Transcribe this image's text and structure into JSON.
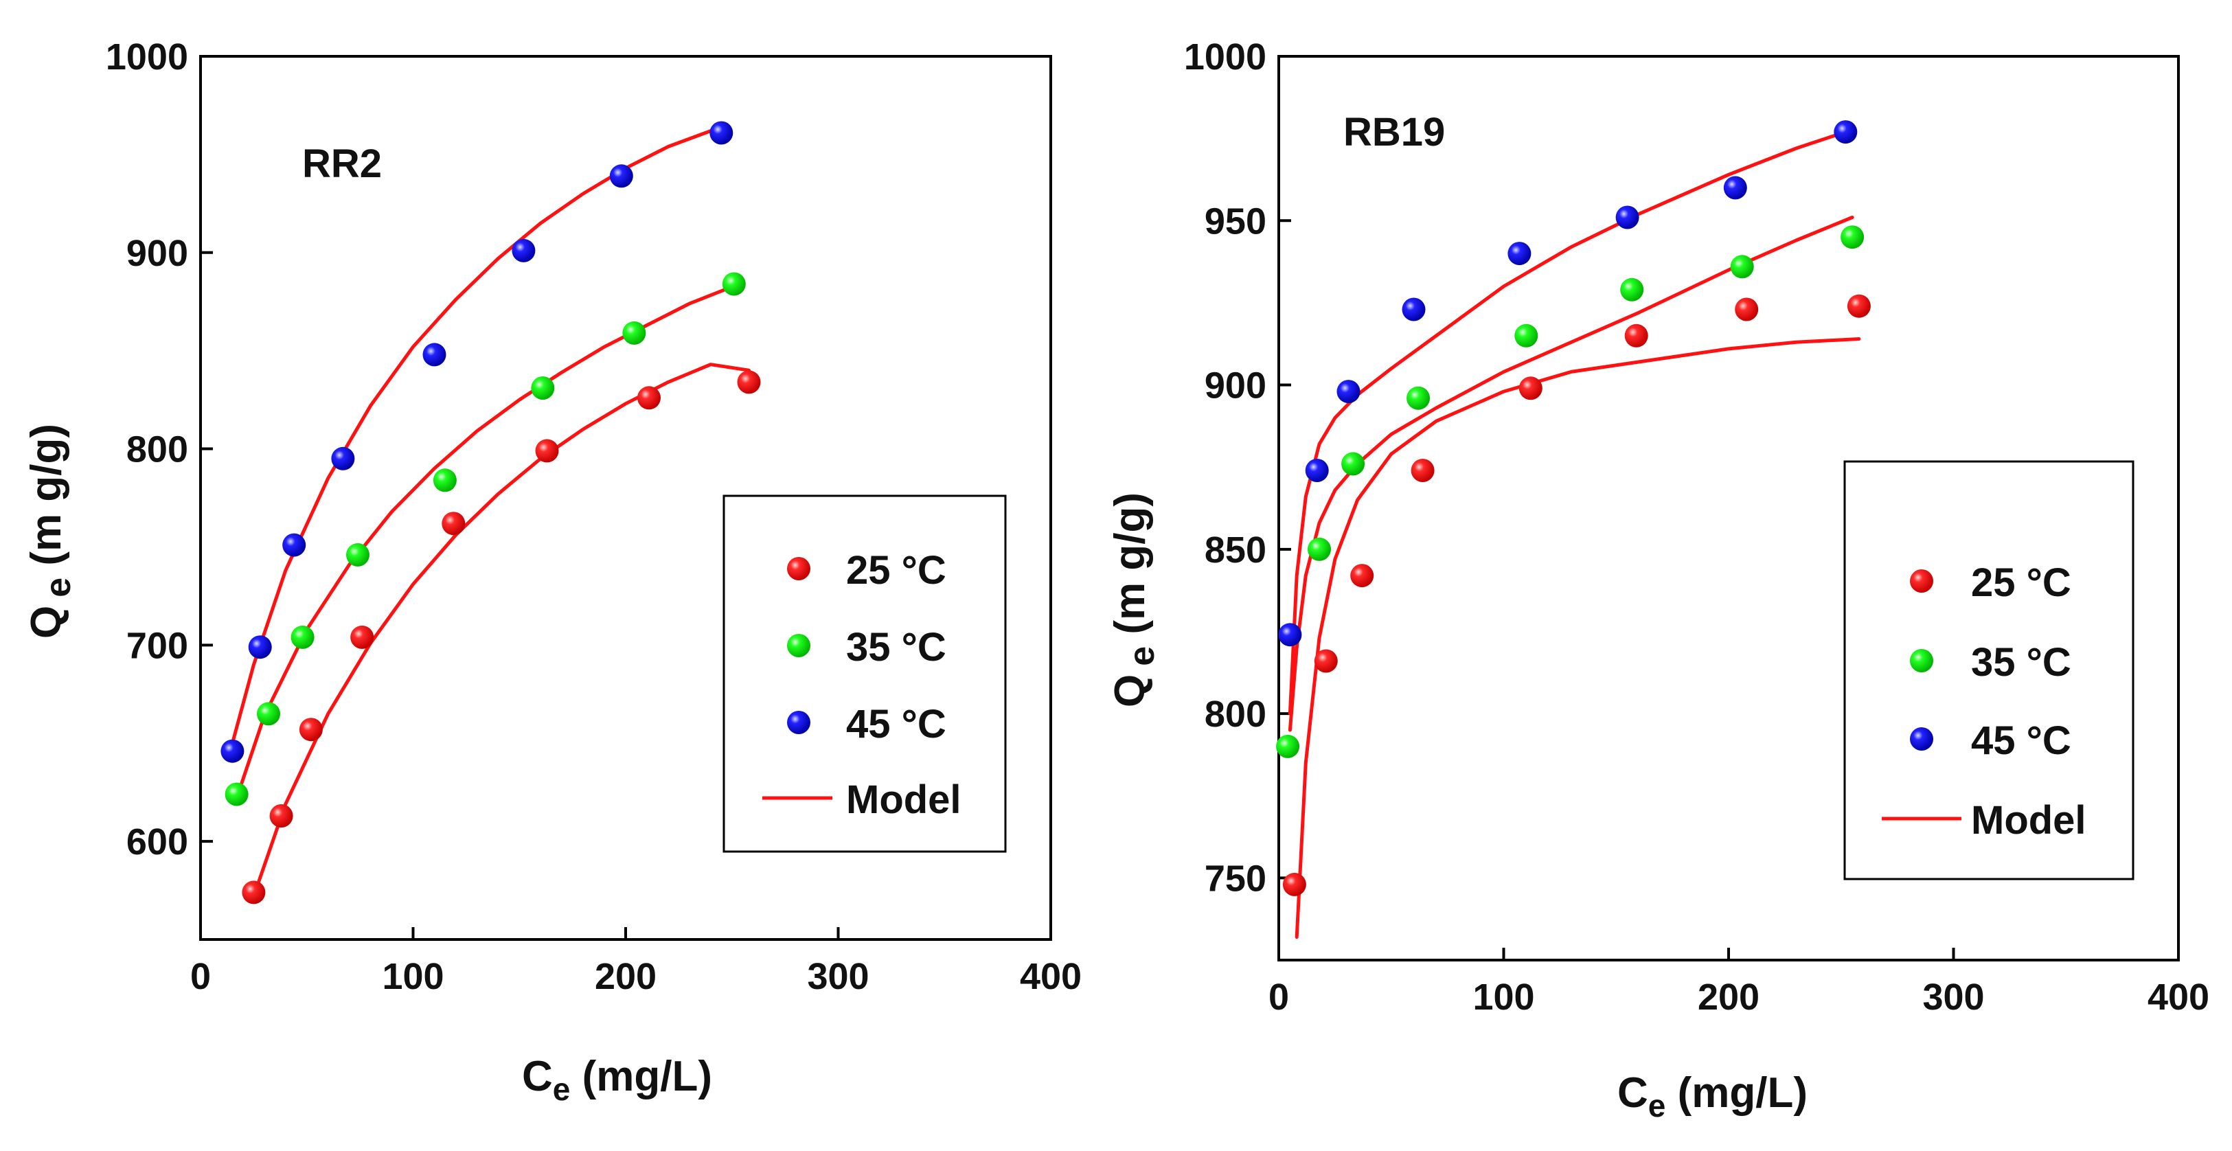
{
  "chart_data": [
    {
      "type": "scatter",
      "panel_label": "RR2",
      "xlabel_main": "C",
      "xlabel_sub": "e",
      "xlabel_unit": " (mg/L)",
      "ylabel_main": "Q",
      "ylabel_sub": "e",
      "ylabel_unit": "  (m g/g)",
      "xlim": [
        0,
        400
      ],
      "ylim": [
        550,
        1000
      ],
      "xticks": [
        0,
        100,
        200,
        300,
        400
      ],
      "yticks": [
        600,
        700,
        800,
        900,
        1000
      ],
      "x_tick_labels": [
        "0",
        "100",
        "200",
        "300",
        "400"
      ],
      "y_tick_labels": [
        "600",
        "700",
        "800",
        "900",
        "1000"
      ],
      "legend_position": "right-middle",
      "series": [
        {
          "name": "25 °C",
          "color": "#ee1111",
          "x": [
            25,
            38,
            52,
            76,
            119,
            163,
            211,
            258
          ],
          "y": [
            574,
            613,
            657,
            704,
            762,
            799,
            826,
            834
          ]
        },
        {
          "name": "35 °C",
          "color": "#11dd11",
          "x": [
            17,
            32,
            48,
            74,
            115,
            161,
            204,
            251
          ],
          "y": [
            624,
            665,
            704,
            746,
            784,
            831,
            859,
            884
          ]
        },
        {
          "name": "45 °C",
          "color": "#1111dd",
          "x": [
            15,
            28,
            44,
            67,
            110,
            152,
            198,
            245
          ],
          "y": [
            646,
            699,
            751,
            795,
            848,
            901,
            939,
            961
          ]
        }
      ],
      "model": {
        "name": "Model",
        "color": "#ff1111",
        "curves": [
          {
            "x": [
              25,
              40,
              60,
              80,
              100,
              120,
              140,
              160,
              180,
              200,
              220,
              240,
              258
            ],
            "y": [
              572,
              619,
              665,
              701,
              731,
              756,
              777,
              795,
              810,
              823,
              834,
              843,
              840
            ]
          },
          {
            "x": [
              17,
              30,
              50,
              70,
              90,
              110,
              130,
              150,
              170,
              190,
              210,
              230,
              251
            ],
            "y": [
              622,
              664,
              708,
              741,
              768,
              790,
              809,
              825,
              839,
              852,
              863,
              874,
              883
            ]
          },
          {
            "x": [
              15,
              25,
              40,
              60,
              80,
              100,
              120,
              140,
              160,
              180,
              200,
              220,
              245
            ],
            "y": [
              650,
              690,
              738,
              785,
              822,
              852,
              876,
              897,
              915,
              930,
              943,
              954,
              964
            ]
          }
        ]
      }
    },
    {
      "type": "scatter",
      "panel_label": "RB19",
      "xlabel_main": "C",
      "xlabel_sub": "e",
      "xlabel_unit": " (mg/L)",
      "ylabel_main": "Q",
      "ylabel_sub": "e",
      "ylabel_unit": "  (m g/g)",
      "xlim": [
        0,
        400
      ],
      "ylim": [
        725,
        1000
      ],
      "xticks": [
        0,
        100,
        200,
        300,
        400
      ],
      "yticks": [
        750,
        800,
        850,
        900,
        950,
        1000
      ],
      "x_tick_labels": [
        "0",
        "100",
        "200",
        "300",
        "400"
      ],
      "y_tick_labels": [
        "750",
        "800",
        "850",
        "900",
        "950",
        "1000"
      ],
      "legend_position": "right-middle",
      "series": [
        {
          "name": "25 °C",
          "color": "#ee1111",
          "x": [
            7,
            21,
            37,
            64,
            112,
            159,
            208,
            258
          ],
          "y": [
            748,
            816,
            842,
            874,
            899,
            915,
            923,
            924
          ]
        },
        {
          "name": "35 °C",
          "color": "#11dd11",
          "x": [
            4,
            18,
            33,
            62,
            110,
            157,
            206,
            255
          ],
          "y": [
            790,
            850,
            876,
            896,
            915,
            929,
            936,
            945
          ]
        },
        {
          "name": "45 °C",
          "color": "#1111dd",
          "x": [
            5,
            17,
            31,
            60,
            107,
            155,
            203,
            252
          ],
          "y": [
            824,
            874,
            898,
            923,
            940,
            951,
            960,
            977
          ]
        }
      ],
      "model": {
        "name": "Model",
        "color": "#ff1111",
        "curves": [
          {
            "x": [
              8,
              12,
              18,
              25,
              35,
              50,
              70,
              100,
              130,
              160,
              200,
              230,
              258
            ],
            "y": [
              732,
              785,
              823,
              847,
              865,
              879,
              889,
              898,
              904,
              907,
              911,
              913,
              914
            ]
          },
          {
            "x": [
              5,
              8,
              12,
              18,
              25,
              35,
              50,
              70,
              100,
              130,
              160,
              200,
              230,
              255
            ],
            "y": [
              795,
              820,
              842,
              858,
              868,
              876,
              885,
              893,
              904,
              913,
              922,
              935,
              944,
              951
            ]
          },
          {
            "x": [
              5,
              8,
              12,
              18,
              25,
              35,
              50,
              70,
              100,
              130,
              160,
              200,
              230,
              252
            ],
            "y": [
              800,
              842,
              866,
              882,
              890,
              897,
              905,
              915,
              930,
              942,
              952,
              964,
              972,
              977
            ]
          }
        ]
      }
    }
  ]
}
